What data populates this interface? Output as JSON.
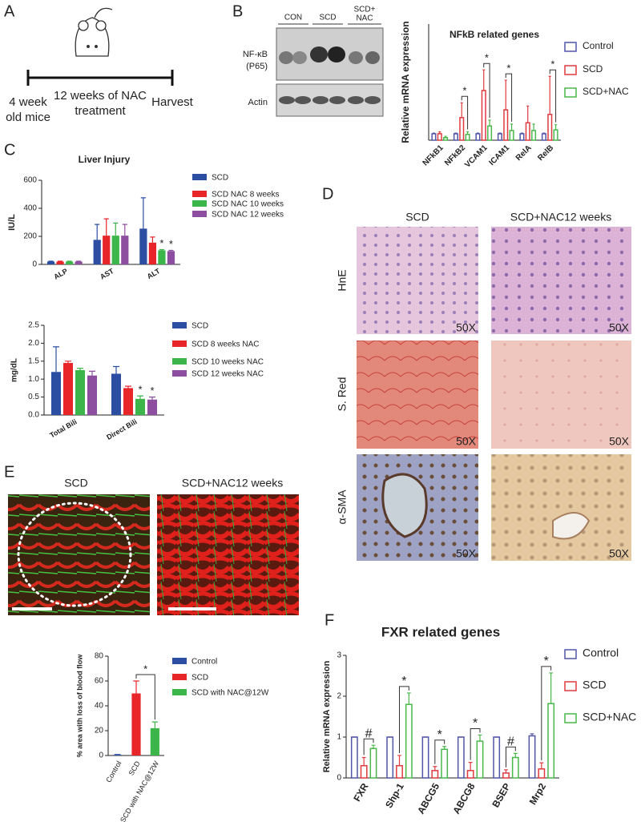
{
  "panel_labels": [
    "A",
    "B",
    "C",
    "D",
    "E",
    "F"
  ],
  "timeline": {
    "start": [
      "4 week",
      "old mice"
    ],
    "treatment": [
      "12 weeks of NAC",
      "treatment"
    ],
    "end": "Harvest"
  },
  "blot": {
    "lanes": [
      [
        "CON"
      ],
      [
        "SCD"
      ],
      [
        "SCD+",
        "NAC"
      ]
    ],
    "rows": [
      [
        "NF-κB",
        "(P65)"
      ],
      [
        "Actin"
      ]
    ]
  },
  "histology": {
    "columns": [
      "SCD",
      "SCD+NAC12 weeks"
    ],
    "rows": [
      "HnE",
      "S. Red",
      "α-SMA"
    ],
    "magnification": [
      "50X",
      "50X",
      "50X",
      "50X",
      "50X",
      "50X"
    ]
  },
  "imaging": {
    "columns": [
      "SCD",
      "SCD+NAC12 weeks"
    ]
  },
  "chart_data": [
    {
      "type": "bar",
      "title": "NFkB related genes",
      "y_label": "Relative mRNA expression",
      "categories": [
        "NFkB1",
        "NFkB2",
        "VCAM1",
        "ICAM1",
        "RelA",
        "RelB"
      ],
      "ylim": [
        0,
        18
      ],
      "hollow": true,
      "series": [
        {
          "name": "Control",
          "color": "#5055a8",
          "values": [
            1,
            1,
            1,
            1,
            1,
            1
          ],
          "errors": [
            0.1,
            0.1,
            0.1,
            0.1,
            0.1,
            0.1
          ]
        },
        {
          "name": "SCD",
          "color": "#e03a3e",
          "values": [
            1,
            3.5,
            7.7,
            4.7,
            2.7,
            4
          ],
          "errors": [
            0.3,
            2.3,
            3.2,
            4.6,
            2.6,
            5.9
          ]
        },
        {
          "name": "SCD+NAC",
          "color": "#49b84a",
          "values": [
            0.4,
            0.9,
            2.2,
            1.5,
            1.5,
            1.6
          ],
          "errors": [
            0.2,
            0.4,
            0.9,
            1.0,
            1.0,
            0.8
          ]
        }
      ],
      "annotations": [
        {
          "text": "*",
          "category": 1
        },
        {
          "text": "*",
          "category": 2
        },
        {
          "text": "*",
          "category": 3
        },
        {
          "text": "*",
          "category": 5
        }
      ]
    },
    {
      "type": "bar",
      "title": "Liver Injury",
      "y_label": "IU/L",
      "categories": [
        "ALP",
        "AST",
        "ALT"
      ],
      "ylim": [
        0,
        600
      ],
      "yticks": [
        0,
        200,
        400,
        600
      ],
      "series": [
        {
          "name": "SCD",
          "color": "#2b4ea2",
          "values": [
            20,
            175,
            255
          ],
          "errors": [
            3,
            110,
            220
          ]
        },
        {
          "name": "SCD NAC 8 weeks",
          "color": "#e8262a",
          "values": [
            20,
            205,
            155
          ],
          "errors": [
            3,
            120,
            40
          ]
        },
        {
          "name": "SCD NAC 10 weeks",
          "color": "#3cb54a",
          "values": [
            20,
            205,
            100
          ],
          "errors": [
            3,
            90,
            5
          ]
        },
        {
          "name": "SCD NAC 12 weeks",
          "color": "#8e4ea0",
          "values": [
            20,
            205,
            95
          ],
          "errors": [
            3,
            80,
            5
          ]
        }
      ],
      "annotations": [
        {
          "text": "*",
          "category": 2,
          "series": 2
        },
        {
          "text": "*",
          "category": 2,
          "series": 3
        }
      ]
    },
    {
      "type": "bar",
      "y_label": "mg/dL",
      "categories": [
        "Total Bili",
        "Direct Bili"
      ],
      "ylim": [
        0,
        2.5
      ],
      "yticks": [
        {
          "value": 0,
          "label": "0.0"
        },
        0.5,
        {
          "value": 1,
          "label": "1.0"
        },
        1.5,
        {
          "value": 2,
          "label": "2.0"
        },
        2.5
      ],
      "series": [
        {
          "name": "SCD",
          "color": "#2b4ea2",
          "values": [
            1.2,
            1.15
          ],
          "errors": [
            0.7,
            0.2
          ]
        },
        {
          "name": "SCD 8 weeks NAC",
          "color": "#e8262a",
          "values": [
            1.45,
            0.75
          ],
          "errors": [
            0.05,
            0.05
          ]
        },
        {
          "name": "SCD 10 weeks NAC",
          "color": "#3cb54a",
          "values": [
            1.25,
            0.45
          ],
          "errors": [
            0.05,
            0.08
          ]
        },
        {
          "name": "SCD 12 weeks NAC",
          "color": "#8e4ea0",
          "values": [
            1.1,
            0.43
          ],
          "errors": [
            0.12,
            0.07
          ]
        }
      ],
      "annotations": [
        {
          "text": "*",
          "category": 1,
          "series": 2
        },
        {
          "text": "*",
          "category": 1,
          "series": 3
        }
      ]
    },
    {
      "type": "bar",
      "y_label": "% area with loss of blood flow",
      "categories": [
        "Control",
        "SCD",
        "SCD with NAC@12W"
      ],
      "ylim": [
        0,
        80
      ],
      "yticks": [
        0,
        20,
        40,
        60,
        80
      ],
      "values": [
        0.5,
        50,
        22
      ],
      "errors": [
        0.3,
        10,
        5
      ],
      "colors": [
        "#2b4ea2",
        "#e8262a",
        "#3cb54a"
      ],
      "annotations": [
        {
          "text": "*",
          "categories": [
            1,
            2
          ]
        }
      ]
    },
    {
      "type": "bar",
      "title": "FXR related genes",
      "y_label": "Relative mRNA expression",
      "categories": [
        "FXR",
        "Shp-1",
        "ABCG5",
        "ABCG8",
        "BSEP",
        "Mrp2"
      ],
      "ylim": [
        0,
        3
      ],
      "yticks": [
        0,
        1,
        2,
        3
      ],
      "hollow": true,
      "series": [
        {
          "name": "Control",
          "color": "#5055a8",
          "values": [
            1,
            1,
            1,
            1,
            1,
            1.03
          ],
          "errors": [
            0,
            0,
            0,
            0,
            0,
            0.05
          ]
        },
        {
          "name": "SCD",
          "color": "#e03a3e",
          "values": [
            0.3,
            0.3,
            0.18,
            0.18,
            0.12,
            0.22
          ],
          "errors": [
            0.2,
            0.25,
            0.1,
            0.2,
            0.08,
            0.15
          ]
        },
        {
          "name": "SCD+NAC",
          "color": "#49b84a",
          "values": [
            0.72,
            1.8,
            0.7,
            0.9,
            0.5,
            1.82
          ],
          "errors": [
            0.08,
            0.28,
            0.07,
            0.15,
            0.1,
            0.75
          ]
        }
      ],
      "annotations": [
        {
          "text": "#",
          "category": 0
        },
        {
          "text": "*",
          "category": 1
        },
        {
          "text": "*",
          "category": 2
        },
        {
          "text": "*",
          "category": 3
        },
        {
          "text": "#",
          "category": 4
        },
        {
          "text": "*",
          "category": 5
        }
      ]
    }
  ]
}
